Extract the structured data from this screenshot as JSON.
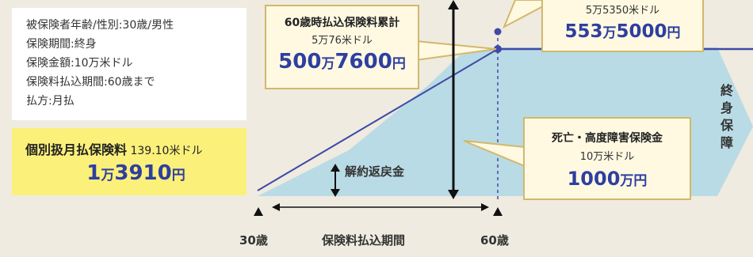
{
  "info": {
    "lines": [
      "被保険者年齢/性別:30歳/男性",
      "保険期間:終身",
      "保険金額:10万米ドル",
      "保険料払込期間:60歳まで",
      "払方:月払"
    ]
  },
  "premium": {
    "label": "個別扱月払保険料",
    "usd": "139.10米ドル",
    "yen_man_num": "1",
    "yen_man_unit": "万",
    "yen_rest_num": "3910",
    "yen_unit": "円"
  },
  "cumulative": {
    "title": "60歳時払込保険料累計",
    "usd": "5万76米ドル",
    "yen_man_num": "500",
    "yen_man_unit": "万",
    "yen_rest_num": "7600",
    "yen_unit": "円"
  },
  "top_callout": {
    "usd": "5万5350米ドル",
    "yen_man_num": "553",
    "yen_man_unit": "万",
    "yen_rest_num": "5000",
    "yen_unit": "円"
  },
  "death_benefit": {
    "title": "死亡・高度障害保険金",
    "usd": "10万米ドル",
    "yen_num": "1000",
    "yen_unit": "万円"
  },
  "side_label_chars": [
    "終",
    "身",
    "保",
    "障"
  ],
  "labels": {
    "surrender": "解約返戻金",
    "age_start": "30歳",
    "age_end": "60歳",
    "period": "保険料払込期間"
  },
  "colors": {
    "background": "#efebe0",
    "area_fill": "#b9dbe5",
    "accent_blue": "#2e3f9f",
    "callout_border": "#d2b86c",
    "premium_box": "#fbf07a"
  }
}
